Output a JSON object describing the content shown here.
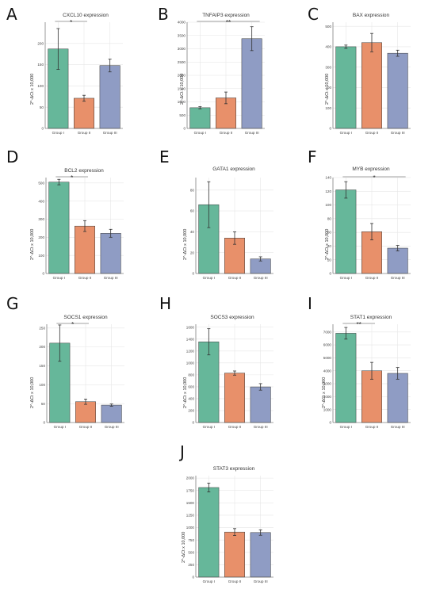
{
  "colors": {
    "group1": "#66b79a",
    "group2": "#e8906a",
    "group3": "#8f9cc4",
    "grid": "#e6e6e6",
    "axis": "#555555",
    "err": "#333333"
  },
  "chart_data": [
    {
      "letter": "A",
      "type": "bar",
      "title": "CXCL10 expression",
      "ylabel": "2^-ΔCt x 10,000",
      "categories": [
        "Group I",
        "Group II",
        "Group III"
      ],
      "values": [
        187,
        71,
        148
      ],
      "errors": [
        48,
        7,
        15
      ],
      "ylim": [
        0,
        250
      ],
      "yticks": [
        0,
        50,
        100,
        150,
        200
      ],
      "significance": [
        {
          "from": 0,
          "to": 1,
          "label": "*"
        }
      ],
      "grid": true
    },
    {
      "letter": "B",
      "type": "bar",
      "title": "TNFAIP3 expression",
      "ylabel": "2^-ΔCt x 10,000",
      "categories": [
        "Group I",
        "Group II",
        "Group III"
      ],
      "values": [
        780,
        1150,
        3380
      ],
      "errors": [
        40,
        220,
        450
      ],
      "ylim": [
        0,
        4000
      ],
      "yticks": [
        0,
        500,
        1000,
        1500,
        2000,
        2500,
        3000,
        3500,
        4000
      ],
      "significance": [
        {
          "from": 0,
          "to": 2,
          "label": "**"
        }
      ],
      "grid": true
    },
    {
      "letter": "C",
      "type": "bar",
      "title": "BAX expression",
      "ylabel": "2^-ΔCt x 10,000",
      "categories": [
        "Group I",
        "Group II",
        "Group III"
      ],
      "values": [
        400,
        420,
        368
      ],
      "errors": [
        8,
        45,
        15
      ],
      "ylim": [
        0,
        520
      ],
      "yticks": [
        0,
        100,
        200,
        300,
        400,
        500
      ],
      "significance": [],
      "grid": true
    },
    {
      "letter": "D",
      "type": "bar",
      "title": "BCL2 expression",
      "ylabel": "2^-ΔCt x 10,000",
      "categories": [
        "Group I",
        "Group II",
        "Group III"
      ],
      "values": [
        505,
        262,
        222
      ],
      "errors": [
        15,
        30,
        22
      ],
      "ylim": [
        0,
        530
      ],
      "yticks": [
        0,
        100,
        200,
        300,
        400,
        500
      ],
      "significance": [
        {
          "from": 0,
          "to": 1,
          "label": "*"
        }
      ],
      "grid": true
    },
    {
      "letter": "E",
      "type": "bar",
      "title": "GATA1 expression",
      "ylabel": "2^-ΔCt x 10,000",
      "categories": [
        "Group I",
        "Group II",
        "Group III"
      ],
      "values": [
        66,
        34,
        14
      ],
      "errors": [
        22,
        6,
        2
      ],
      "ylim": [
        0,
        92
      ],
      "yticks": [
        0,
        20,
        40,
        60,
        80
      ],
      "significance": [],
      "grid": true
    },
    {
      "letter": "F",
      "type": "bar",
      "title": "MYB expression",
      "ylabel": "2^-ΔCt x 10,000",
      "categories": [
        "Group I",
        "Group II",
        "Group III"
      ],
      "values": [
        122,
        61,
        37
      ],
      "errors": [
        12,
        12,
        4
      ],
      "ylim": [
        0,
        140
      ],
      "yticks": [
        0,
        20,
        40,
        60,
        80,
        100,
        120,
        140
      ],
      "significance": [
        {
          "from": 0,
          "to": 2,
          "label": "*"
        }
      ],
      "grid": true
    },
    {
      "letter": "G",
      "type": "bar",
      "title": "SOCS1 expression",
      "ylabel": "2^-ΔCt x 10,000",
      "categories": [
        "Group I",
        "Group II",
        "Group III"
      ],
      "values": [
        210,
        55,
        46
      ],
      "errors": [
        48,
        7,
        3
      ],
      "ylim": [
        0,
        260
      ],
      "yticks": [
        0,
        50,
        100,
        150,
        200,
        250
      ],
      "significance": [
        {
          "from": 0,
          "to": 1,
          "label": "*"
        }
      ],
      "grid": true
    },
    {
      "letter": "H",
      "type": "bar",
      "title": "SOCS3 expression",
      "ylabel": "2^-ΔCt x 10,000",
      "categories": [
        "Group I",
        "Group II",
        "Group III"
      ],
      "values": [
        1355,
        830,
        598
      ],
      "errors": [
        220,
        35,
        55
      ],
      "ylim": [
        0,
        1650
      ],
      "yticks": [
        0,
        200,
        400,
        600,
        800,
        1000,
        1200,
        1400,
        1600
      ],
      "significance": [],
      "grid": true
    },
    {
      "letter": "I",
      "type": "bar",
      "title": "STAT1 expression",
      "ylabel": "2^-ΔCt x 10,000",
      "categories": [
        "Group I",
        "Group II",
        "Group III"
      ],
      "values": [
        6900,
        4000,
        3800
      ],
      "errors": [
        450,
        650,
        450
      ],
      "ylim": [
        0,
        7600
      ],
      "yticks": [
        0,
        1000,
        2000,
        3000,
        4000,
        5000,
        6000,
        7000
      ],
      "significance": [
        {
          "from": 0,
          "to": 1,
          "label": "**"
        }
      ],
      "grid": true
    },
    {
      "letter": "J",
      "type": "bar",
      "title": "STAT3 expression",
      "ylabel": "2^-ΔCt x 10,000",
      "categories": [
        "Group I",
        "Group II",
        "Group III"
      ],
      "values": [
        1810,
        910,
        900
      ],
      "errors": [
        90,
        70,
        55
      ],
      "ylim": [
        0,
        2050
      ],
      "yticks": [
        0,
        250,
        500,
        750,
        1000,
        1250,
        1500,
        1750,
        2000
      ],
      "significance": [],
      "grid": true
    }
  ]
}
